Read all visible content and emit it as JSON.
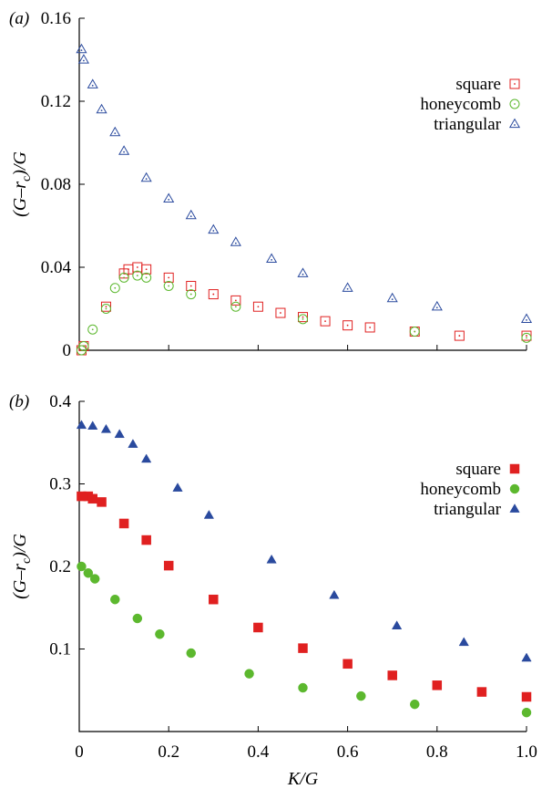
{
  "chart_data": [
    {
      "type": "scatter",
      "panel_label": "(a)",
      "xlabel": "",
      "ylabel": "(G–r_c)/G",
      "xlim": [
        0,
        1
      ],
      "ylim": [
        0,
        0.16
      ],
      "yticks": [
        0,
        0.04,
        0.08,
        0.12,
        0.16
      ],
      "ytick_labels": [
        "0",
        "0.04",
        "0.08",
        "0.12",
        "0.16"
      ],
      "xticks": [
        0,
        0.2,
        0.4,
        0.6,
        0.8,
        1.0
      ],
      "xtick_labels": [],
      "legend_position": "top-right",
      "marker_fill": "open",
      "series": [
        {
          "name": "square",
          "color": "#e02020",
          "marker": "square",
          "x": [
            0.005,
            0.01,
            0.06,
            0.1,
            0.11,
            0.13,
            0.15,
            0.2,
            0.25,
            0.3,
            0.35,
            0.4,
            0.45,
            0.5,
            0.55,
            0.6,
            0.65,
            0.75,
            0.85,
            1.0
          ],
          "y": [
            0.0,
            0.002,
            0.021,
            0.037,
            0.039,
            0.04,
            0.039,
            0.035,
            0.031,
            0.027,
            0.024,
            0.021,
            0.018,
            0.016,
            0.014,
            0.012,
            0.011,
            0.009,
            0.007,
            0.007
          ]
        },
        {
          "name": "honeycomb",
          "color": "#5cb82e",
          "marker": "circle",
          "x": [
            0.005,
            0.01,
            0.03,
            0.06,
            0.08,
            0.1,
            0.13,
            0.15,
            0.2,
            0.25,
            0.35,
            0.5,
            0.75,
            1.0
          ],
          "y": [
            0.0,
            0.002,
            0.01,
            0.02,
            0.03,
            0.035,
            0.036,
            0.035,
            0.031,
            0.027,
            0.021,
            0.015,
            0.009,
            0.006
          ]
        },
        {
          "name": "triangular",
          "color": "#2a4a9e",
          "marker": "triangle",
          "x": [
            0.005,
            0.01,
            0.03,
            0.05,
            0.08,
            0.1,
            0.15,
            0.2,
            0.25,
            0.3,
            0.35,
            0.43,
            0.5,
            0.6,
            0.7,
            0.8,
            1.0
          ],
          "y": [
            0.145,
            0.14,
            0.128,
            0.116,
            0.105,
            0.096,
            0.083,
            0.073,
            0.065,
            0.058,
            0.052,
            0.044,
            0.037,
            0.03,
            0.025,
            0.021,
            0.015
          ]
        }
      ]
    },
    {
      "type": "scatter",
      "panel_label": "(b)",
      "xlabel": "K/G",
      "ylabel": "(G–r_c)/G",
      "xlim": [
        0,
        1
      ],
      "ylim": [
        0,
        0.4
      ],
      "yticks": [
        0.1,
        0.2,
        0.3,
        0.4
      ],
      "ytick_labels": [
        "0.1",
        "0.2",
        "0.3",
        "0.4"
      ],
      "xticks": [
        0,
        0.2,
        0.4,
        0.6,
        0.8,
        1.0
      ],
      "xtick_labels": [
        "0",
        "0.2",
        "0.4",
        "0.6",
        "0.8",
        "1.0"
      ],
      "legend_position": "top-right",
      "marker_fill": "filled",
      "series": [
        {
          "name": "square",
          "color": "#e02020",
          "marker": "square",
          "x": [
            0.005,
            0.02,
            0.03,
            0.05,
            0.1,
            0.15,
            0.2,
            0.3,
            0.4,
            0.5,
            0.6,
            0.7,
            0.8,
            0.9,
            1.0
          ],
          "y": [
            0.285,
            0.285,
            0.282,
            0.278,
            0.252,
            0.232,
            0.201,
            0.16,
            0.126,
            0.101,
            0.082,
            0.068,
            0.056,
            0.048,
            0.042
          ]
        },
        {
          "name": "honeycomb",
          "color": "#5cb82e",
          "marker": "circle",
          "x": [
            0.005,
            0.02,
            0.035,
            0.08,
            0.13,
            0.18,
            0.25,
            0.38,
            0.5,
            0.63,
            0.75,
            1.0
          ],
          "y": [
            0.2,
            0.192,
            0.185,
            0.16,
            0.137,
            0.118,
            0.095,
            0.07,
            0.053,
            0.043,
            0.033,
            0.023
          ]
        },
        {
          "name": "triangular",
          "color": "#2a4a9e",
          "marker": "triangle",
          "x": [
            0.005,
            0.03,
            0.06,
            0.09,
            0.12,
            0.15,
            0.22,
            0.29,
            0.43,
            0.57,
            0.71,
            0.86,
            1.0
          ],
          "y": [
            0.371,
            0.37,
            0.366,
            0.36,
            0.348,
            0.33,
            0.295,
            0.262,
            0.208,
            0.165,
            0.128,
            0.108,
            0.089
          ]
        }
      ]
    }
  ]
}
